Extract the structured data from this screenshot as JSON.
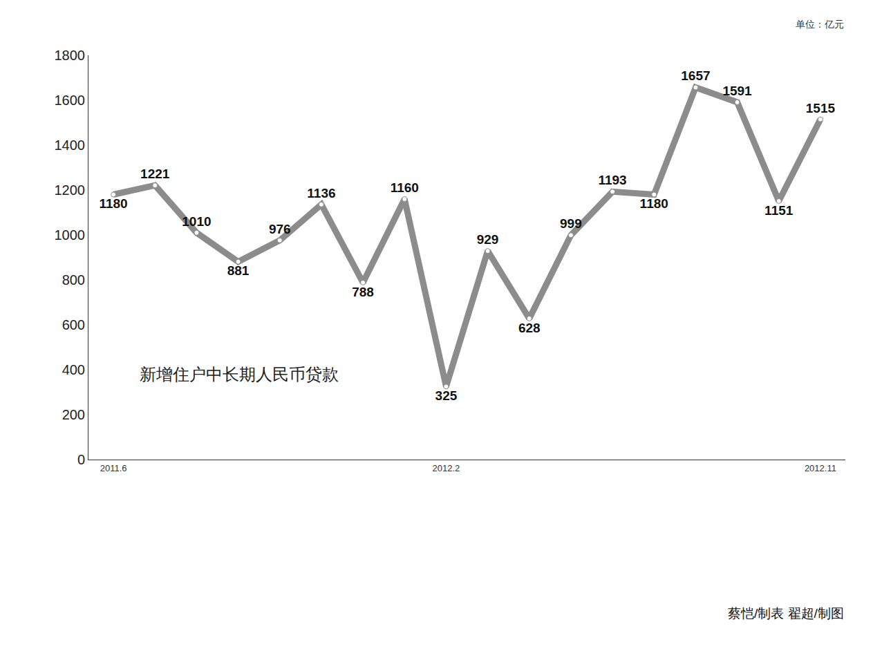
{
  "chart_data": {
    "type": "line",
    "title": "新增住户中长期人民币贷款",
    "categories": [
      "2011.6",
      null,
      null,
      null,
      null,
      null,
      null,
      null,
      "2012.2",
      null,
      null,
      null,
      null,
      null,
      null,
      null,
      null,
      "2012.11"
    ],
    "values": [
      1180,
      1221,
      1010,
      881,
      976,
      1136,
      788,
      1160,
      325,
      929,
      628,
      999,
      1193,
      1180,
      1657,
      1591,
      1151,
      1515
    ],
    "color": "#8c8c8c",
    "ylim": [
      0,
      1800
    ],
    "yticks": [
      0,
      200,
      400,
      600,
      800,
      1000,
      1200,
      1400,
      1600,
      1800
    ],
    "grid": false,
    "data_labels": true,
    "marker": "circle",
    "annotations": [
      {
        "text": "单位：亿元"
      },
      {
        "text": "蔡恺/制表 翟超/制图"
      }
    ]
  }
}
